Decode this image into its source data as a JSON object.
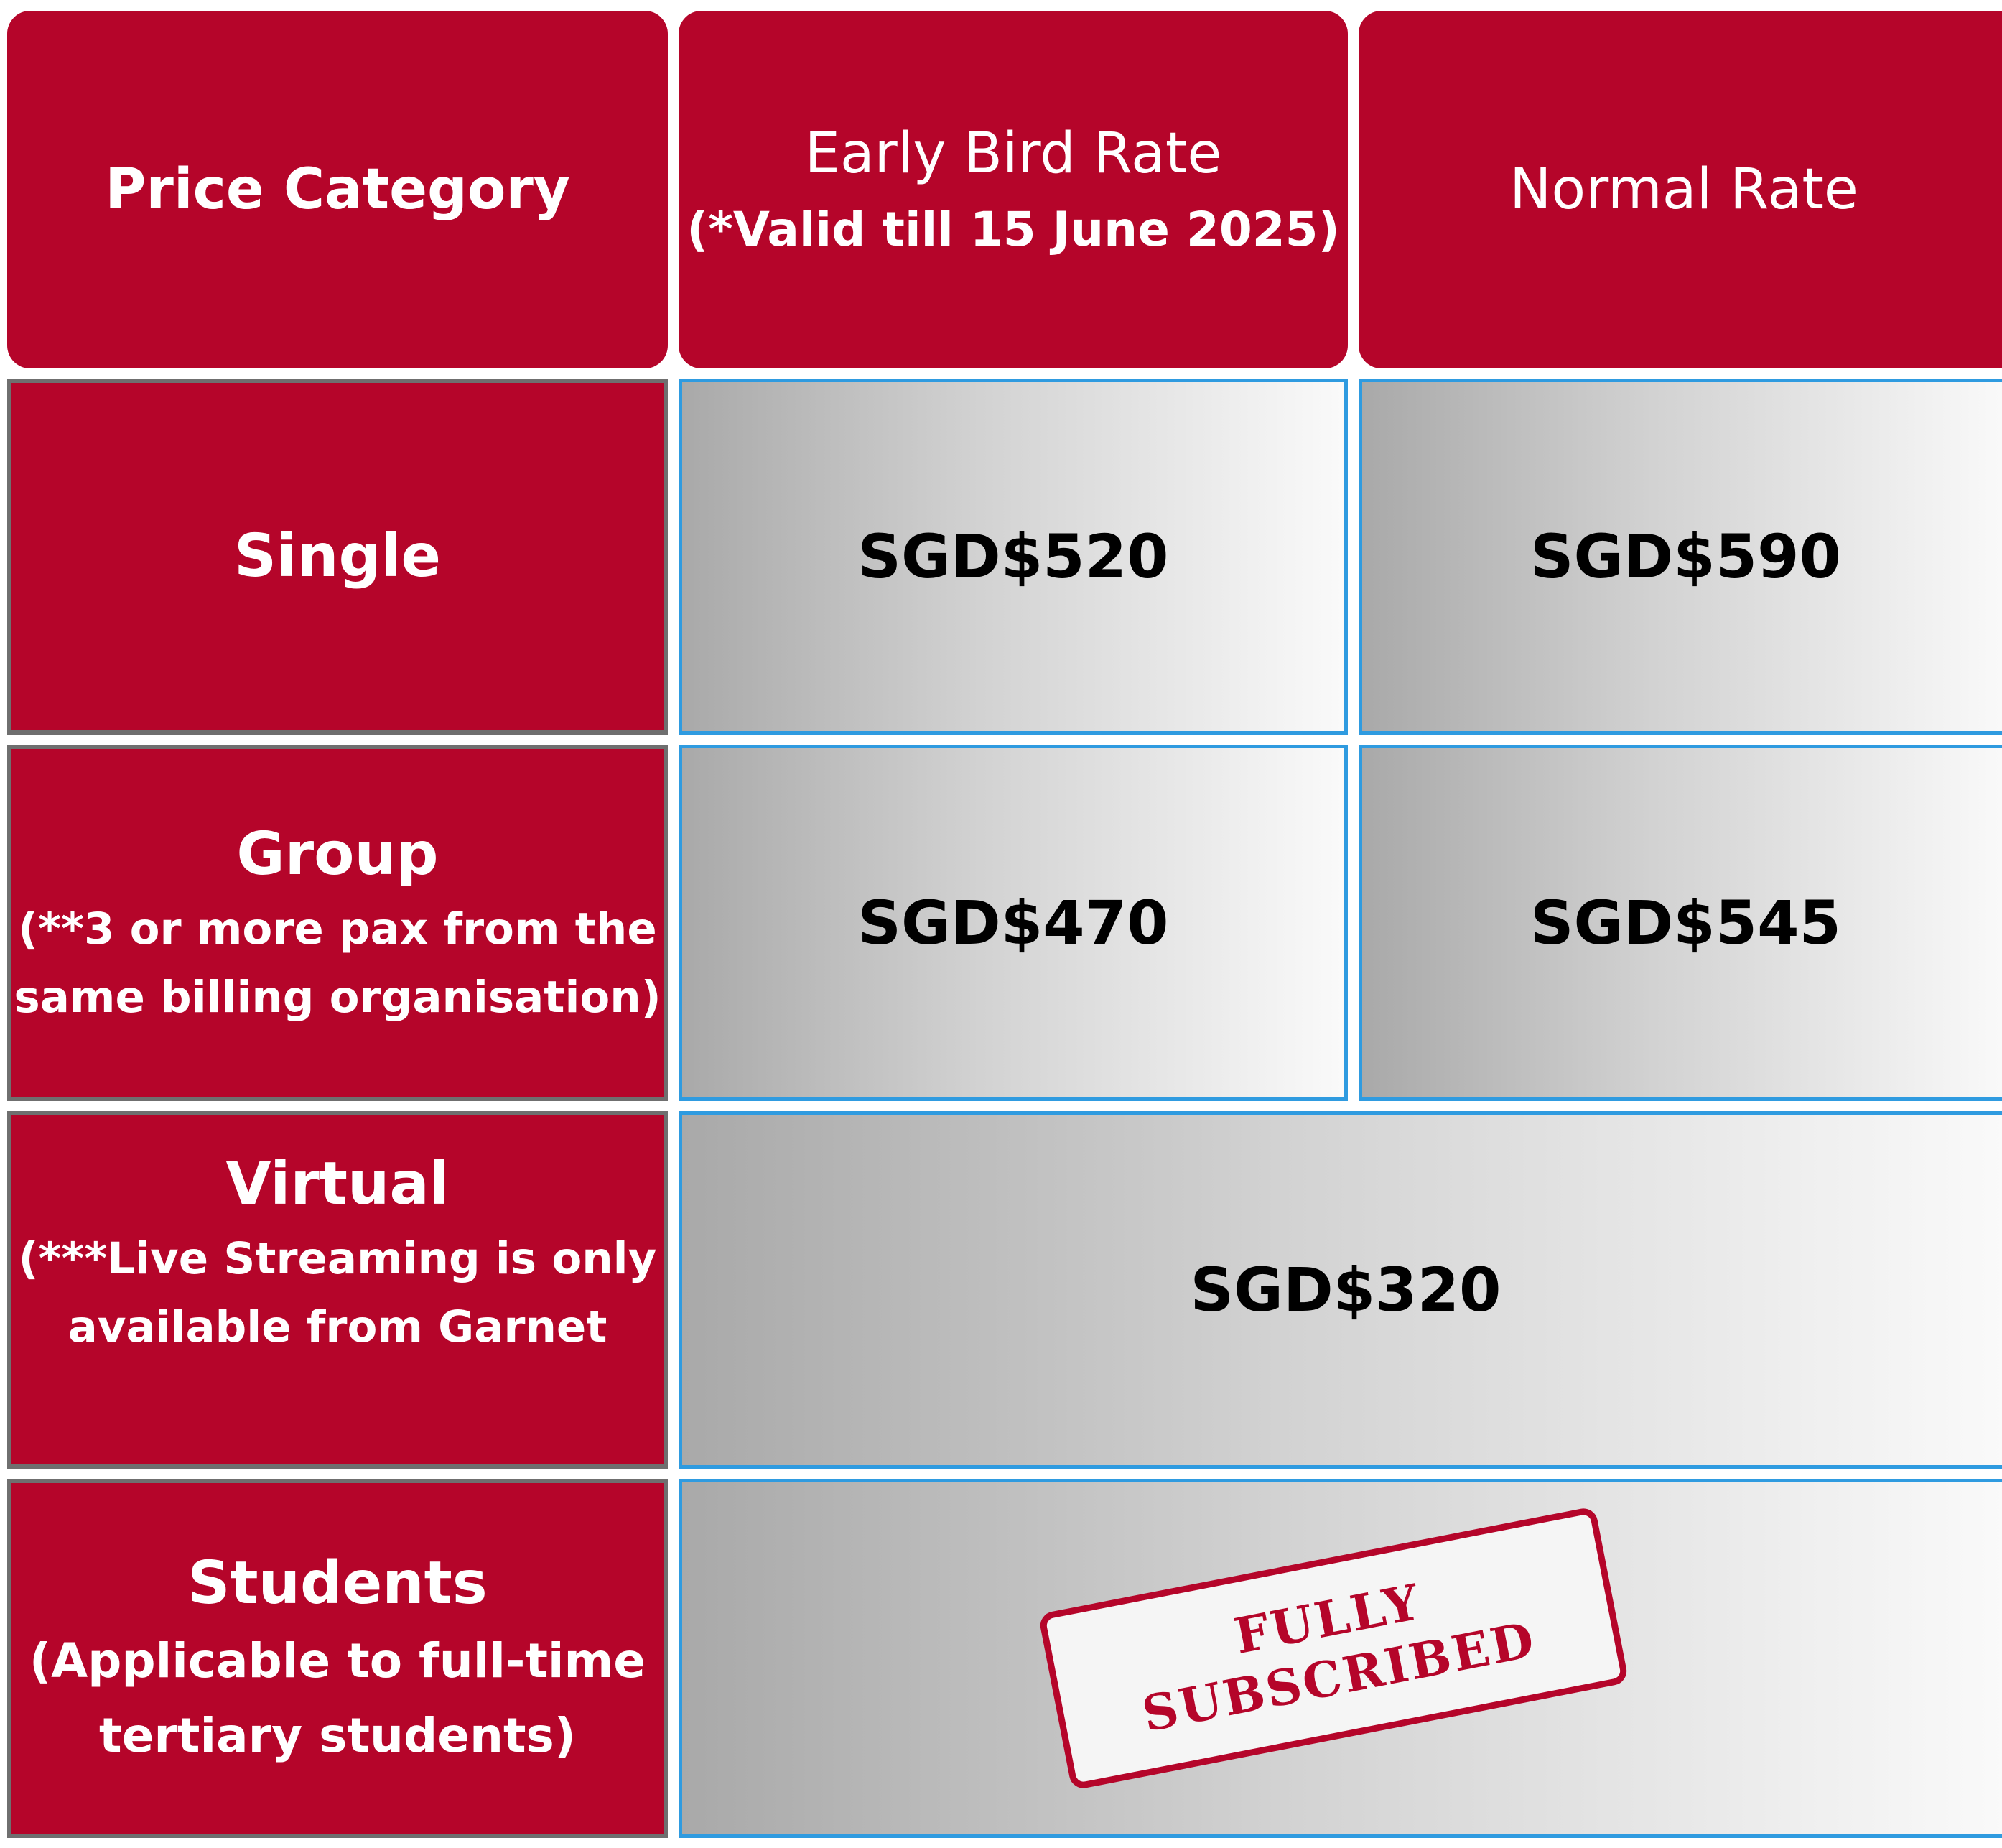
{
  "header": {
    "category": "Price Category",
    "early_bird": "Early Bird Rate",
    "early_bird_note": "(*Valid till 15 June 2025)",
    "normal": "Normal Rate"
  },
  "rows": [
    {
      "label": "Single",
      "note": "",
      "early_bird_price": "SGD$520",
      "normal_price": "SGD$590"
    },
    {
      "label": "Group",
      "note_line1": "(**3 or more pax from the",
      "note_line2": "same billing organisation)",
      "early_bird_price": "SGD$470",
      "normal_price": "SGD$545"
    },
    {
      "label": "Virtual",
      "note_line1": "(***Live Streaming is only",
      "note_line2": "available from Garnet",
      "price": "SGD$320"
    },
    {
      "label": "Students",
      "note_line1": "(Applicable to full-time",
      "note_line2": "tertiary students)",
      "stamp_line1": "FULLY",
      "stamp_line2": "SUBSCRIBED"
    }
  ],
  "colors": {
    "brand_red": "#b5052a",
    "cell_border_blue": "#2f9be0",
    "label_border_gray": "#6f6f6f"
  }
}
